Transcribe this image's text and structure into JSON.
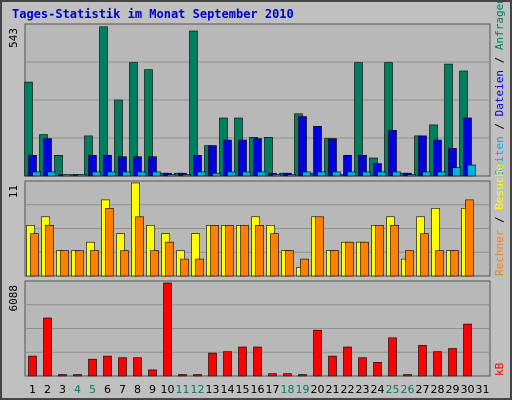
{
  "title": "Tages-Statistik im Monat September 2010",
  "colors": {
    "anfragen": "#007f5f",
    "dateien": "#0000e0",
    "seiten": "#00b0e0",
    "besuche": "#ffff00",
    "rechner": "#ff8000",
    "kb": "#ff0000",
    "weekend_day": "#007f5f",
    "weekday": "#000000",
    "slash": "#000000"
  },
  "chart_data": [
    {
      "type": "bar",
      "panel": "top",
      "ymax_label": "543",
      "ylim": [
        0,
        543
      ],
      "grid": true,
      "categories": [
        "1",
        "2",
        "3",
        "4",
        "5",
        "6",
        "7",
        "8",
        "9",
        "10",
        "11",
        "12",
        "13",
        "14",
        "15",
        "16",
        "17",
        "18",
        "19",
        "20",
        "21",
        "22",
        "23",
        "24",
        "25",
        "26",
        "27",
        "28",
        "29",
        "30",
        "31"
      ],
      "right_labels": [
        "Anfragen",
        "Dateien",
        "Seiten"
      ],
      "series": [
        {
          "name": "Anfragen",
          "values": [
            340,
            150,
            75,
            5,
            145,
            540,
            275,
            410,
            385,
            10,
            10,
            525,
            110,
            210,
            210,
            140,
            140,
            10,
            225,
            10,
            135,
            5,
            410,
            65,
            410,
            10,
            145,
            185,
            405,
            380,
            0
          ]
        },
        {
          "name": "Dateien",
          "values": [
            75,
            135,
            5,
            5,
            75,
            75,
            70,
            70,
            70,
            10,
            10,
            75,
            110,
            130,
            130,
            135,
            10,
            10,
            215,
            180,
            135,
            75,
            75,
            45,
            165,
            10,
            145,
            130,
            100,
            210,
            0
          ]
        },
        {
          "name": "Seiten",
          "values": [
            15,
            15,
            5,
            5,
            15,
            15,
            15,
            15,
            15,
            5,
            5,
            15,
            10,
            15,
            15,
            15,
            5,
            5,
            15,
            15,
            15,
            15,
            15,
            15,
            15,
            5,
            15,
            15,
            30,
            40,
            0
          ]
        }
      ]
    },
    {
      "type": "bar",
      "panel": "middle",
      "ymax_label": "11",
      "ylim": [
        0,
        11
      ],
      "grid": true,
      "categories": [
        "1",
        "2",
        "3",
        "4",
        "5",
        "6",
        "7",
        "8",
        "9",
        "10",
        "11",
        "12",
        "13",
        "14",
        "15",
        "16",
        "17",
        "18",
        "19",
        "20",
        "21",
        "22",
        "23",
        "24",
        "25",
        "26",
        "27",
        "28",
        "29",
        "30",
        "31"
      ],
      "right_labels": [
        "Rechner",
        "Besuche"
      ],
      "series": [
        {
          "name": "Besuche",
          "values": [
            6,
            7,
            3,
            3,
            4,
            9,
            5,
            11,
            6,
            5,
            3,
            5,
            6,
            6,
            6,
            7,
            6,
            3,
            1,
            7,
            3,
            4,
            4,
            6,
            7,
            2,
            7,
            8,
            3,
            8,
            0
          ]
        },
        {
          "name": "Rechner",
          "values": [
            5,
            6,
            3,
            3,
            3,
            8,
            3,
            7,
            3,
            4,
            2,
            2,
            6,
            6,
            6,
            6,
            5,
            3,
            2,
            7,
            3,
            4,
            4,
            6,
            6,
            3,
            5,
            3,
            3,
            9,
            0
          ]
        }
      ]
    },
    {
      "type": "bar",
      "panel": "bottom",
      "ymax_label": "6088",
      "ylim": [
        0,
        6088
      ],
      "grid": true,
      "categories": [
        "1",
        "2",
        "3",
        "4",
        "5",
        "6",
        "7",
        "8",
        "9",
        "10",
        "11",
        "12",
        "13",
        "14",
        "15",
        "16",
        "17",
        "18",
        "19",
        "20",
        "21",
        "22",
        "23",
        "24",
        "25",
        "26",
        "27",
        "28",
        "29",
        "30",
        "31"
      ],
      "right_labels": [
        "kB"
      ],
      "series": [
        {
          "name": "kB",
          "values": [
            1300,
            3800,
            100,
            100,
            1100,
            1300,
            1200,
            1200,
            400,
            6088,
            100,
            100,
            1500,
            1600,
            1900,
            1900,
            150,
            150,
            100,
            3000,
            1300,
            1900,
            1200,
            900,
            2500,
            100,
            2000,
            1600,
            1800,
            3400,
            0
          ]
        }
      ]
    }
  ],
  "x_axis": {
    "labels": [
      "1",
      "2",
      "3",
      "4",
      "5",
      "6",
      "7",
      "8",
      "9",
      "10",
      "11",
      "12",
      "13",
      "14",
      "15",
      "16",
      "17",
      "18",
      "19",
      "20",
      "21",
      "22",
      "23",
      "24",
      "25",
      "26",
      "27",
      "28",
      "29",
      "30",
      "31"
    ],
    "weekend": [
      4,
      5,
      11,
      12,
      18,
      19,
      25,
      26
    ]
  }
}
